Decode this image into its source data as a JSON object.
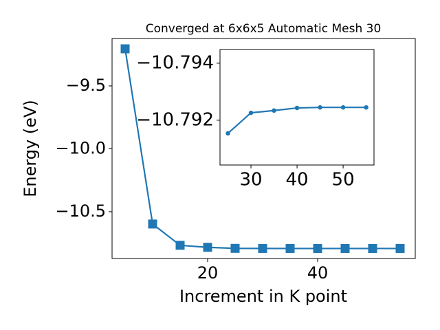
{
  "chart_data": [
    {
      "type": "line",
      "title": "Converged at 6x6x5 Automatic Mesh 30",
      "xlabel": "Increment in K point",
      "ylabel": "Energy (eV)",
      "x": [
        5,
        10,
        15,
        20,
        25,
        30,
        35,
        40,
        45,
        50,
        55
      ],
      "series": [
        {
          "color": "#1f77b4",
          "marker": "square",
          "values": [
            -9.205,
            -10.598,
            -10.767,
            -10.783,
            -10.79154,
            -10.79226,
            -10.79234,
            -10.79243,
            -10.79245,
            -10.79245,
            -10.79245
          ]
        }
      ],
      "xlim": [
        2.625,
        57.75
      ],
      "ylim": [
        -10.872,
        -9.123
      ],
      "xticks": [
        20,
        40
      ],
      "yticks": [
        {
          "value": -9.5,
          "label": "−9.5"
        },
        {
          "value": -10.0,
          "label": "−10.0"
        },
        {
          "value": -10.5,
          "label": "−10.5"
        }
      ]
    },
    {
      "type": "line",
      "x": [
        25,
        30,
        35,
        40,
        45,
        50,
        55
      ],
      "series": [
        {
          "color": "#1f77b4",
          "marker": "circle",
          "values": [
            -10.79154,
            -10.79226,
            -10.79234,
            -10.79243,
            -10.79245,
            -10.79245,
            -10.79245
          ]
        }
      ],
      "xlim": [
        23.28,
        56.7
      ],
      "ylim": [
        -10.79043,
        -10.79448
      ],
      "xticks": [
        30,
        40,
        50
      ],
      "yticks": [
        {
          "value": -10.794,
          "label": "−10.794"
        },
        {
          "value": -10.792,
          "label": "−10.792"
        }
      ]
    }
  ]
}
